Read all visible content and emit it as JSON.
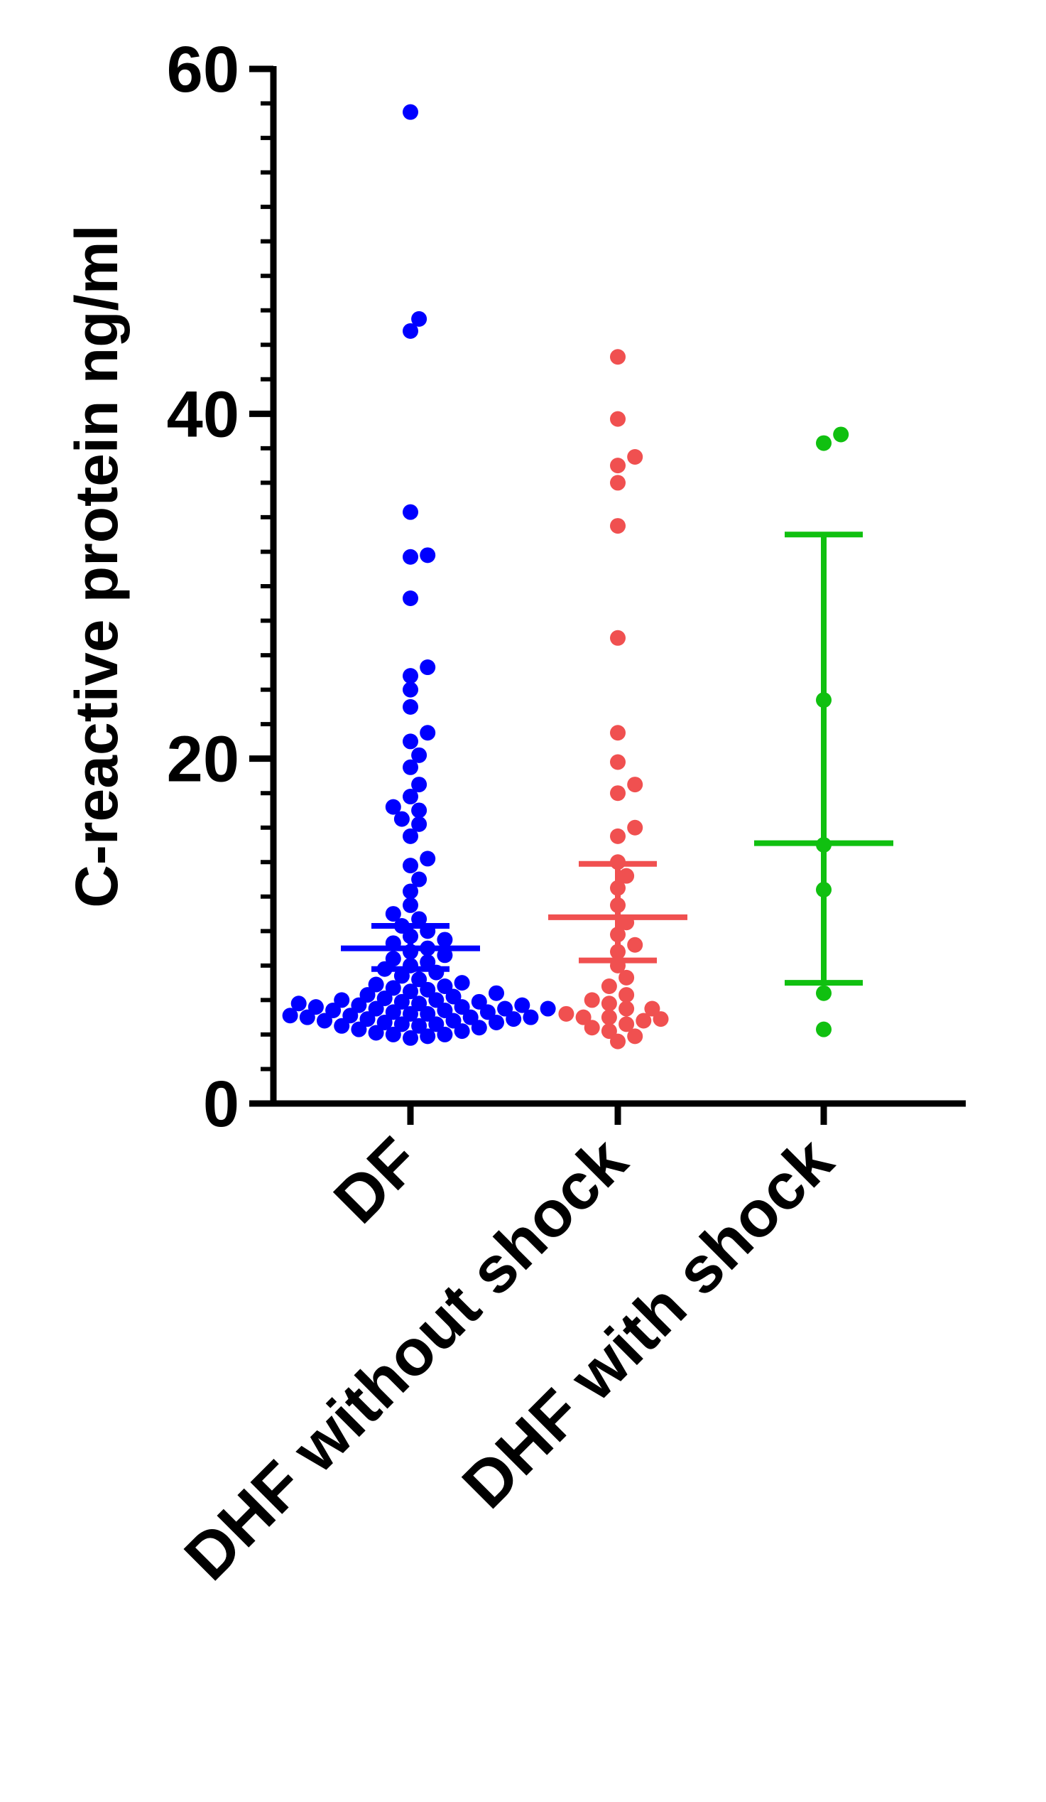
{
  "chart_data": {
    "type": "scatter",
    "subtype": "dot-plot with mean and 95% CI",
    "title": "",
    "xlabel": "",
    "ylabel": "C-reactive protein ng/ml",
    "ylim": [
      0,
      60
    ],
    "yticks": [
      "0",
      "20",
      "40",
      "60"
    ],
    "minor_tick_step": 2,
    "grid": false,
    "legend": "none",
    "categories": [
      "DF",
      "DHF without shock",
      "DHF with shock"
    ],
    "series": [
      {
        "category": "DF",
        "color": "#0000ff",
        "mean": 9.0,
        "ci_low": 7.8,
        "ci_high": 10.3,
        "points": [
          57.5,
          45.5,
          44.8,
          34.3,
          31.8,
          31.7,
          29.3,
          25.3,
          24.8,
          24.0,
          23.0,
          21.5,
          21.0,
          20.2,
          19.5,
          18.5,
          17.8,
          17.2,
          17.0,
          16.5,
          16.2,
          15.5,
          14.2,
          13.8,
          13.0,
          12.3,
          11.5,
          11.0,
          10.7,
          10.3,
          10.0,
          9.7,
          9.5,
          9.3,
          9.0,
          8.8,
          8.6,
          8.4,
          8.2,
          8.0,
          7.8,
          7.6,
          7.4,
          7.2,
          7.0,
          6.9,
          6.8,
          6.7,
          6.6,
          6.5,
          6.4,
          6.3,
          6.2,
          6.1,
          6.0,
          6.0,
          5.9,
          5.9,
          5.8,
          5.8,
          5.7,
          5.7,
          5.6,
          5.6,
          5.5,
          5.5,
          5.5,
          5.4,
          5.4,
          5.3,
          5.3,
          5.2,
          5.2,
          5.1,
          5.1,
          5.0,
          5.0,
          5.0,
          4.9,
          4.9,
          4.8,
          4.8,
          4.7,
          4.7,
          4.6,
          4.6,
          4.5,
          4.5,
          4.4,
          4.3,
          4.2,
          4.1,
          4.0,
          4.0,
          3.9,
          3.8
        ]
      },
      {
        "category": "DHF without shock",
        "color": "#f05050",
        "mean": 10.8,
        "ci_low": 8.3,
        "ci_high": 13.9,
        "points": [
          43.3,
          39.7,
          37.5,
          37.0,
          36.0,
          33.5,
          27.0,
          21.5,
          19.8,
          18.5,
          18.0,
          16.0,
          15.5,
          14.0,
          13.2,
          12.5,
          11.5,
          10.5,
          9.8,
          9.2,
          8.8,
          8.0,
          7.3,
          6.8,
          6.3,
          6.0,
          5.8,
          5.5,
          5.5,
          5.2,
          5.0,
          5.0,
          4.9,
          4.8,
          4.6,
          4.4,
          4.2,
          3.9,
          3.6
        ]
      },
      {
        "category": "DHF with shock",
        "color": "#10c010",
        "mean": 15.1,
        "ci_low": 7.0,
        "ci_high": 33.0,
        "points": [
          38.8,
          38.3,
          23.4,
          15.0,
          12.4,
          6.4,
          4.3
        ]
      }
    ]
  }
}
